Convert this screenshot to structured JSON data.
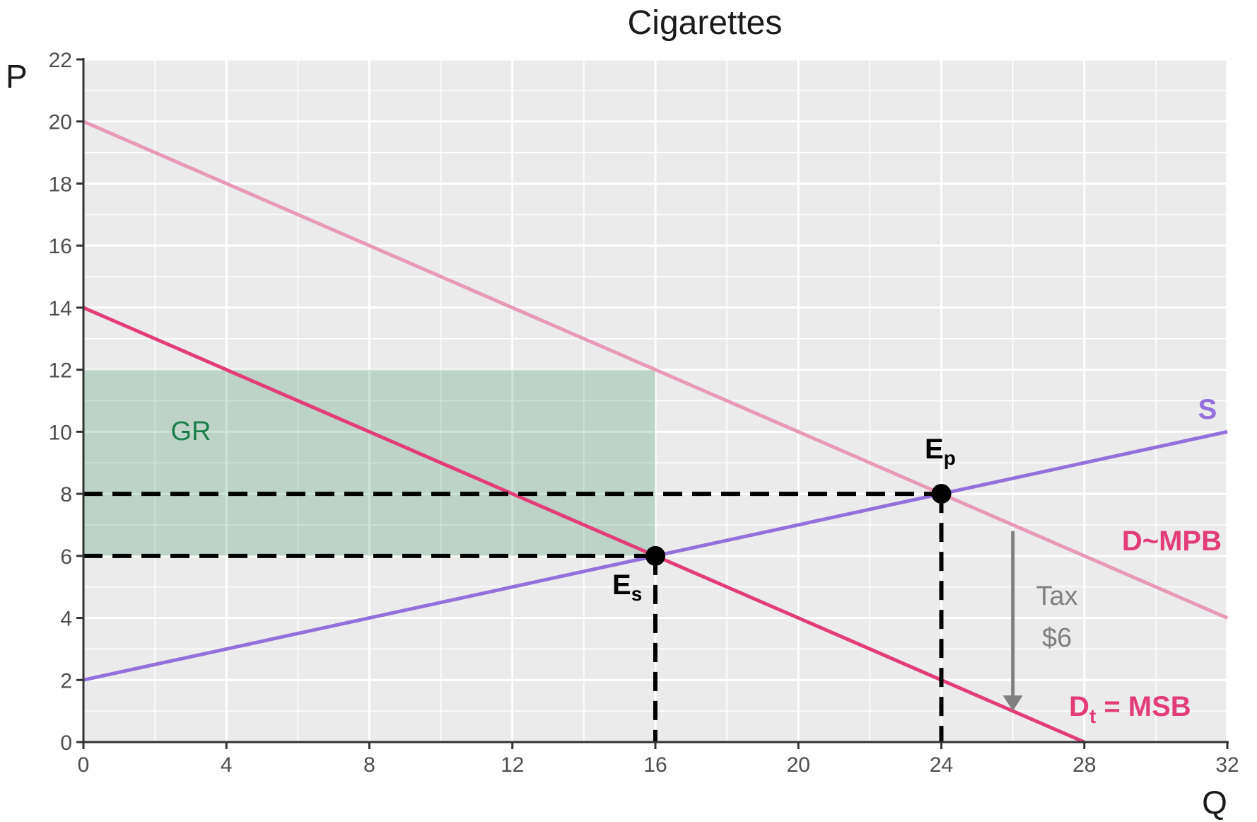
{
  "chart_data": {
    "type": "line",
    "title": "Cigarettes",
    "xlabel": "Q",
    "ylabel": "P",
    "xlim": [
      0,
      32
    ],
    "ylim": [
      0,
      22
    ],
    "x_ticks": [
      0,
      4,
      8,
      12,
      16,
      20,
      24,
      28,
      32
    ],
    "y_ticks": [
      0,
      2,
      4,
      6,
      8,
      10,
      12,
      14,
      16,
      18,
      20,
      22
    ],
    "grid": true,
    "series": [
      {
        "name": "S",
        "color": "#9370DB",
        "x": [
          0,
          32
        ],
        "y": [
          2,
          10
        ]
      },
      {
        "name": "D~MPB",
        "color": "#E899B6",
        "x": [
          0,
          32
        ],
        "y": [
          20,
          4
        ]
      },
      {
        "name": "Dt = MSB",
        "color": "#E23D78",
        "x": [
          0,
          28
        ],
        "y": [
          14,
          0
        ]
      }
    ],
    "labels": {
      "S": "S",
      "D_MPB": "D~MPB",
      "Dt_MSB_main": "D",
      "Dt_MSB_sub": "t",
      "Dt_MSB_rest": " = MSB"
    },
    "points": [
      {
        "label_main": "E",
        "label_sub": "s",
        "x": 16,
        "y": 6
      },
      {
        "label_main": "E",
        "label_sub": "p",
        "x": 24,
        "y": 8
      }
    ],
    "dashed_lines": [
      {
        "x": [
          0,
          24
        ],
        "y": [
          8,
          8
        ]
      },
      {
        "x": [
          0,
          16
        ],
        "y": [
          6,
          6
        ]
      },
      {
        "x": [
          16,
          16
        ],
        "y": [
          6,
          0
        ]
      },
      {
        "x": [
          24,
          24
        ],
        "y": [
          8,
          0
        ]
      }
    ],
    "shaded_region": {
      "label": "GR",
      "color": "#1B7F4B",
      "x": [
        0,
        16
      ],
      "y": [
        6,
        12
      ]
    },
    "arrow": {
      "x": 26,
      "y_from": 6.8,
      "y_to": 1.0,
      "text_line1": "Tax",
      "text_line2": "$6"
    }
  }
}
